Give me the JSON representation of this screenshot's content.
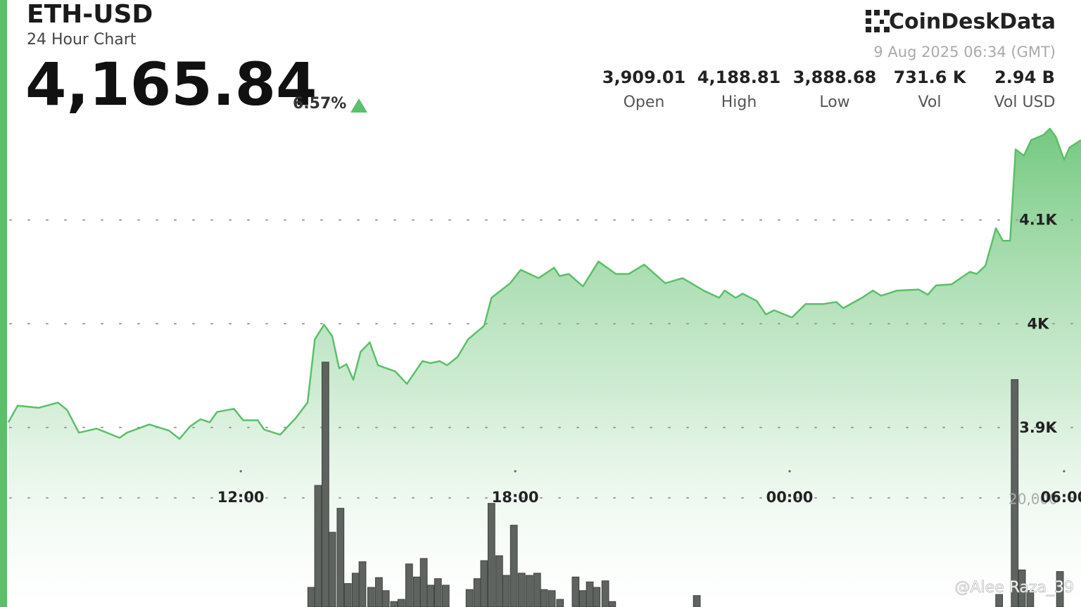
{
  "header": {
    "symbol": "ETH-USD",
    "subtitle": "24 Hour Chart",
    "price": "4,165.84",
    "change": "6.57%",
    "brand": "CoinDeskData",
    "timestamp": "9 Aug 2025 06:34 (GMT)",
    "stats": [
      {
        "value": "3,909.01",
        "label": "Open"
      },
      {
        "value": "4,188.81",
        "label": "High"
      },
      {
        "value": "3,888.68",
        "label": "Low"
      },
      {
        "value": "731.6 K",
        "label": "Vol"
      },
      {
        "value": "2.94 B",
        "label": "Vol USD"
      }
    ]
  },
  "watermark": "@Alee Raza_39",
  "chart_data": {
    "type": "line",
    "xlim": [
      6.92,
      30.37
    ],
    "xticks": [
      {
        "value": 12,
        "label": "12:00"
      },
      {
        "value": 18,
        "label": "18:00"
      },
      {
        "value": 24,
        "label": "00:00"
      },
      {
        "value": 30,
        "label": "06:00"
      }
    ],
    "ylim": [
      3727,
      4312
    ],
    "yticks": [
      {
        "value": 3900,
        "label": "3.9K"
      },
      {
        "value": 4000,
        "label": "4K"
      },
      {
        "value": 4100,
        "label": "4.1K"
      }
    ],
    "y2lim": [
      0,
      111300
    ],
    "y2ticks": [
      {
        "value": 20000,
        "label": "20,000"
      }
    ],
    "grid": true,
    "series": [
      {
        "type": "line",
        "color": "#5cbf6a",
        "x": [
          6.92,
          7.12,
          7.58,
          8.0,
          8.2,
          8.46,
          8.85,
          9.35,
          9.51,
          10.0,
          10.43,
          10.66,
          10.89,
          11.12,
          11.32,
          11.48,
          11.85,
          12.05,
          12.37,
          12.51,
          12.86,
          13.2,
          13.46,
          13.62,
          13.82,
          14.0,
          14.15,
          14.31,
          14.46,
          14.62,
          14.82,
          15.0,
          15.38,
          15.63,
          15.97,
          16.15,
          16.35,
          16.51,
          16.74,
          16.97,
          17.32,
          17.48,
          17.89,
          18.12,
          18.51,
          18.85,
          18.97,
          19.17,
          19.48,
          19.82,
          20.2,
          20.48,
          20.82,
          21.28,
          21.66,
          22.12,
          22.46,
          22.58,
          22.82,
          22.97,
          23.28,
          23.48,
          23.66,
          24.05,
          24.35,
          24.74,
          25.02,
          25.17,
          25.58,
          25.82,
          26.0,
          26.35,
          26.82,
          27.02,
          27.2,
          27.54,
          27.94,
          28.09,
          28.28,
          28.51,
          28.66,
          28.82,
          28.94,
          29.12,
          29.28,
          29.55,
          29.69,
          29.82,
          30.0,
          30.12,
          30.37
        ],
        "values": [
          3905,
          3921,
          3919,
          3924,
          3917,
          3895,
          3899,
          3890,
          3895,
          3903,
          3897,
          3889,
          3901,
          3908,
          3905,
          3915,
          3918,
          3907,
          3907,
          3898,
          3893,
          3909,
          3924,
          3985,
          3999,
          3988,
          3957,
          3961,
          3946,
          3973,
          3982,
          3960,
          3954,
          3942,
          3964,
          3962,
          3964,
          3960,
          3968,
          3985,
          3998,
          4025,
          4039,
          4052,
          4044,
          4054,
          4046,
          4048,
          4036,
          4060,
          4048,
          4048,
          4057,
          4039,
          4044,
          4032,
          4025,
          4032,
          4025,
          4029,
          4022,
          4009,
          4013,
          4006,
          4019,
          4019,
          4021,
          4015,
          4025,
          4032,
          4027,
          4032,
          4033,
          4028,
          4037,
          4038,
          4050,
          4048,
          4056,
          4092,
          4080,
          4080,
          4168,
          4162,
          4177,
          4182,
          4188,
          4180,
          4158,
          4170,
          4177
        ]
      },
      {
        "type": "bar",
        "axis": "y2",
        "color": "#5f6360",
        "bar_width": 0.15,
        "x": [
          13.54,
          13.69,
          13.85,
          14.0,
          14.18,
          14.34,
          14.51,
          14.66,
          14.85,
          15.02,
          15.17,
          15.35,
          15.51,
          15.68,
          15.85,
          16.0,
          16.15,
          16.31,
          16.48,
          17.0,
          17.17,
          17.32,
          17.48,
          17.65,
          17.8,
          17.97,
          18.14,
          18.31,
          18.48,
          18.63,
          18.8,
          18.98,
          19.32,
          19.48,
          19.63,
          19.78,
          19.97,
          20.12,
          21.97,
          28.58,
          28.92,
          29.08,
          29.26,
          29.91
        ],
        "values": [
          3600,
          22300,
          44900,
          13700,
          18100,
          4300,
          6200,
          8300,
          3600,
          5400,
          3000,
          1000,
          1400,
          7900,
          5500,
          8900,
          4000,
          5200,
          4000,
          3200,
          5200,
          8500,
          19000,
          9400,
          5800,
          15000,
          6200,
          5800,
          6200,
          3200,
          3000,
          1400,
          5500,
          3000,
          4600,
          3600,
          4800,
          1000,
          2100,
          2300,
          41700,
          6800,
          3000,
          6500
        ]
      }
    ]
  }
}
